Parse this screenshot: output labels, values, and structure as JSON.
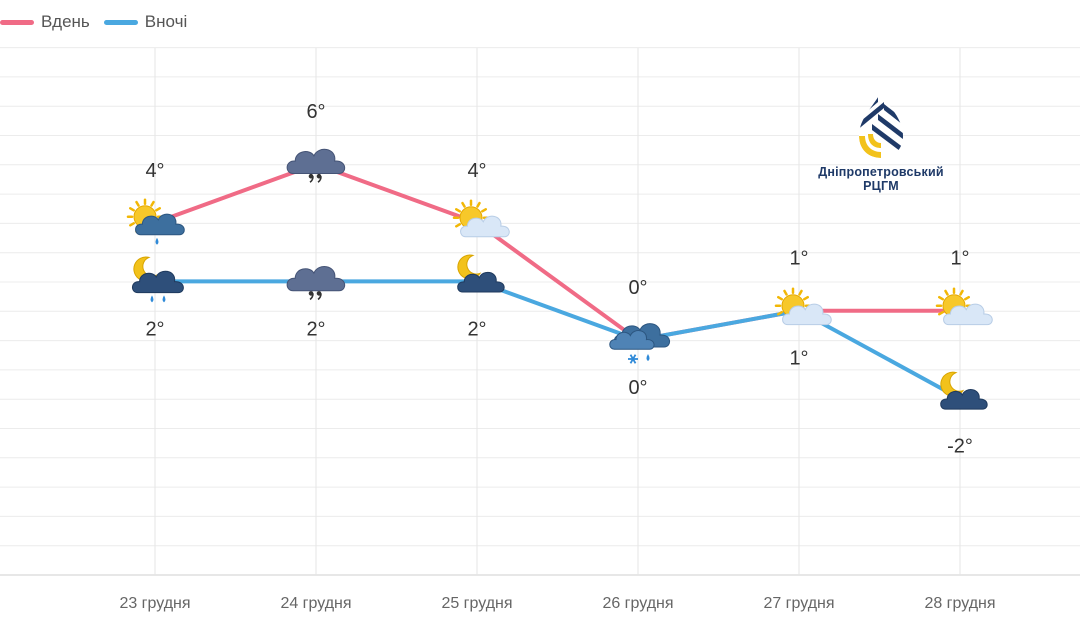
{
  "chart_data": {
    "type": "line",
    "categories": [
      "23 грудня",
      "24 грудня",
      "25 грудня",
      "26 грудня",
      "27 грудня",
      "28 грудня"
    ],
    "series": [
      {
        "name": "Вдень",
        "color": "#f06b86",
        "values": [
          4,
          6,
          4,
          0,
          1,
          1
        ],
        "labels": [
          "4°",
          "6°",
          "4°",
          "0°",
          "1°",
          "1°"
        ],
        "icons": [
          "sun-cloud-rain-icon",
          "cloud-drizzle-icon",
          "sun-cloud-icon",
          "cloud-snow-rain-icon",
          "sun-cloud-icon",
          "sun-cloud-icon"
        ]
      },
      {
        "name": "Вночі",
        "color": "#4aa8e0",
        "values": [
          2,
          2,
          2,
          0,
          1,
          -2
        ],
        "labels": [
          "2°",
          "2°",
          "2°",
          "0°",
          "1°",
          "-2°"
        ],
        "icons": [
          "moon-cloud-rain-icon",
          "cloud-drizzle-icon",
          "moon-cloud-icon",
          "cloud-snow-rain-icon",
          "sun-cloud-icon",
          "moon-cloud-icon"
        ]
      }
    ],
    "legend_position": "top-left",
    "grid": true
  },
  "logo": {
    "line1": "Дніпропетровський",
    "line2": "РЦГМ"
  }
}
